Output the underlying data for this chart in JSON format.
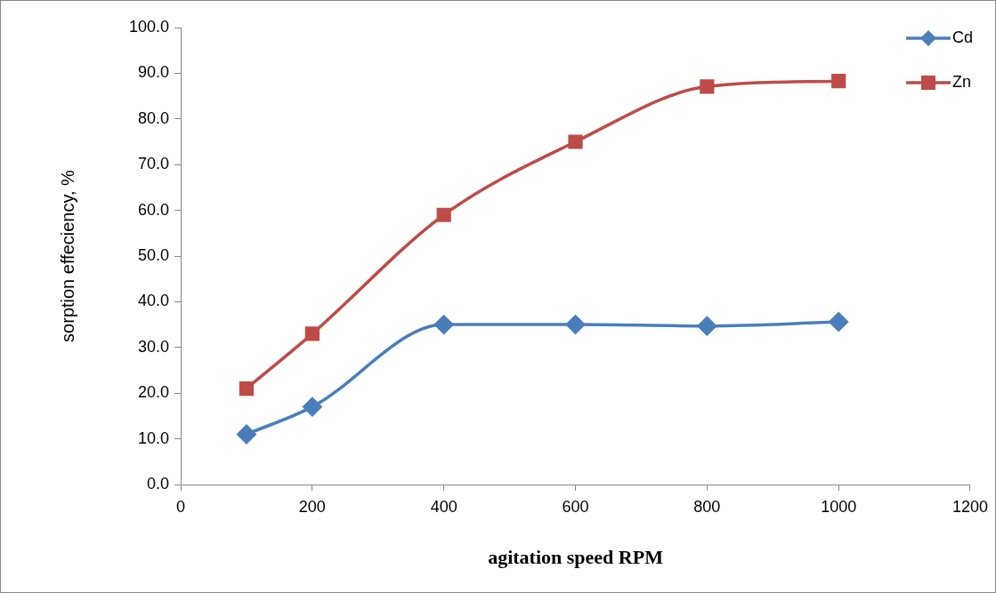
{
  "chart_data": {
    "type": "line",
    "xlabel": "agitation speed RPM",
    "ylabel": "sorption effeciency, %",
    "x": [
      100,
      200,
      400,
      600,
      800,
      1000
    ],
    "series": [
      {
        "name": "Cd",
        "color": "#4a7ebb",
        "marker": "diamond",
        "values": [
          11,
          17,
          35,
          35,
          34.7,
          35.6
        ]
      },
      {
        "name": "Zn",
        "color": "#be4b48",
        "marker": "square",
        "values": [
          21,
          33,
          59,
          75,
          87.1,
          88.3
        ]
      }
    ],
    "xlim": [
      0,
      1200
    ],
    "xticks": [
      0,
      200,
      400,
      600,
      800,
      1000,
      1200
    ],
    "ylim": [
      0,
      100
    ],
    "yticks": [
      {
        "value": 0,
        "label": "0.0"
      },
      {
        "value": 10,
        "label": "10.0"
      },
      {
        "value": 20,
        "label": "20.0"
      },
      {
        "value": 30,
        "label": "30.0"
      },
      {
        "value": 40,
        "label": "40.0"
      },
      {
        "value": 50,
        "label": "50.0"
      },
      {
        "value": 60,
        "label": "60.0"
      },
      {
        "value": 70,
        "label": "70.0"
      },
      {
        "value": 80,
        "label": "80.0"
      },
      {
        "value": 90,
        "label": "90.0"
      },
      {
        "value": 100,
        "label": "100.0"
      }
    ],
    "grid": false,
    "legend": "top right"
  }
}
